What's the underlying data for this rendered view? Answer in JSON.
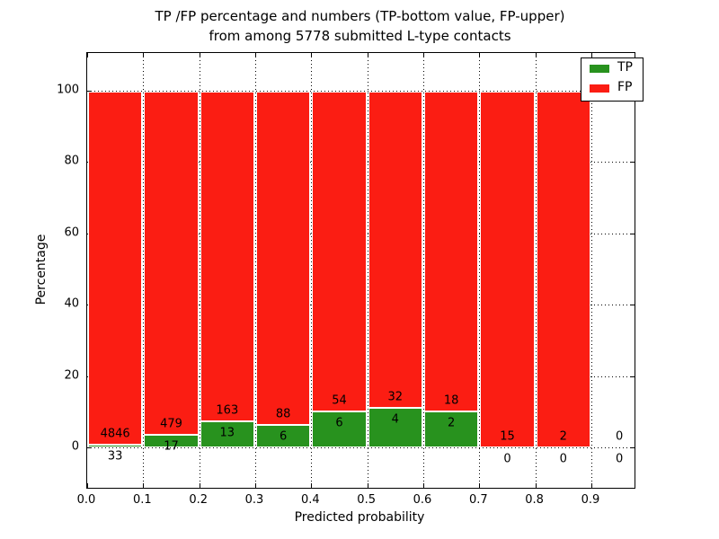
{
  "figure": {
    "title_line1": "TP /FP percentage and numbers (TP-bottom value, FP-upper)",
    "title_line2": "from among 5778 submitted L-type contacts",
    "background_color": "#ffffff"
  },
  "chart_data": {
    "type": "bar",
    "stacked": true,
    "normalized_to_percent": true,
    "title": "TP /FP percentage and numbers (TP-bottom value, FP-upper) from among 5778 submitted L-type contacts",
    "xlabel": "Predicted probability",
    "ylabel": "Percentage",
    "total_contacts": 5778,
    "bin_starts": [
      0.0,
      0.1,
      0.2,
      0.3,
      0.4,
      0.5,
      0.6,
      0.7,
      0.8,
      0.9
    ],
    "bin_width": 0.1,
    "xtick_labels": [
      "0.0",
      "0.1",
      "0.2",
      "0.3",
      "0.4",
      "0.5",
      "0.6",
      "0.7",
      "0.8",
      "0.9"
    ],
    "ytick_labels": [
      "0",
      "20",
      "40",
      "60",
      "80",
      "100"
    ],
    "ytick_values": [
      0,
      20,
      40,
      60,
      80,
      100
    ],
    "ylim": [
      -11.3,
      110.6
    ],
    "grid": {
      "visible": true,
      "style": "dotted",
      "color": "#000000"
    },
    "annotation_note": "TP count printed below/inside green segment, FP count printed above green segment",
    "series": [
      {
        "name": "TP",
        "color": "#28921e",
        "counts": [
          33,
          17,
          13,
          6,
          6,
          4,
          2,
          0,
          0,
          0
        ]
      },
      {
        "name": "FP",
        "color": "#fb1d13",
        "counts": [
          4846,
          479,
          163,
          88,
          54,
          32,
          18,
          15,
          2,
          0
        ]
      }
    ],
    "legend": {
      "position": "upper right",
      "entries": [
        {
          "label": "TP",
          "color": "#28921e"
        },
        {
          "label": "FP",
          "color": "#fb1d13"
        }
      ]
    }
  }
}
